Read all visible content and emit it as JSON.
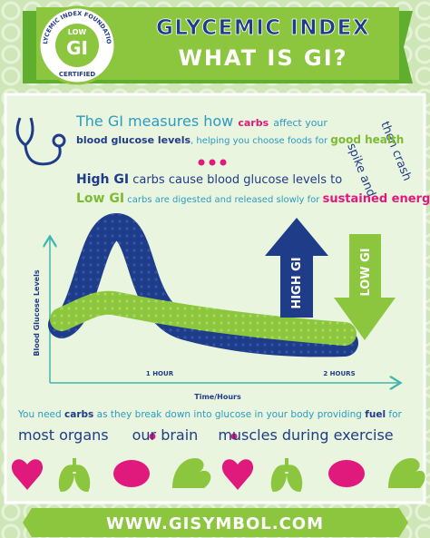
{
  "header": {
    "title": "GLYCEMIC INDEX",
    "subtitle": "WHAT IS GI?",
    "logo": {
      "ring": "GLYCEMIC INDEX FOUNDATION",
      "badge_top": "LOW",
      "badge": "GI",
      "label": "CERTIFIED"
    }
  },
  "intro": {
    "line1": [
      "The GI measures how",
      "carbs",
      "affect your"
    ],
    "line2": [
      "blood glucose levels",
      ", helping you choose foods for",
      "good health"
    ]
  },
  "annotation": [
    "spike and",
    "then crash"
  ],
  "high_gi": [
    "High GI",
    "carbs cause blood glucose levels to"
  ],
  "low_gi": [
    "Low GI",
    "carbs are digested and released slowly for",
    "sustained energy"
  ],
  "chart": {
    "y_label": "Blood Glucose Levels",
    "x_label": "Time/Hours",
    "x_ticks": [
      "1 HOUR",
      "2 HOURS"
    ],
    "high_arrow": "HIGH GI",
    "low_arrow": "LOW GI"
  },
  "footer": {
    "line1": [
      "You need",
      "carbs",
      "as they break down into glucose in your body providing",
      "fuel",
      "for"
    ],
    "line2": [
      "most organs",
      "our brain",
      "muscles during exercise"
    ]
  },
  "url": "WWW.GISYMBOL.COM"
}
